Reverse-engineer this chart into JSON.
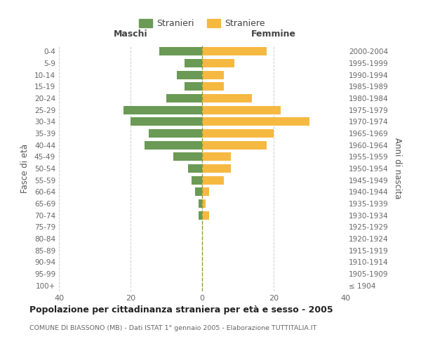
{
  "age_groups": [
    "100+",
    "95-99",
    "90-94",
    "85-89",
    "80-84",
    "75-79",
    "70-74",
    "65-69",
    "60-64",
    "55-59",
    "50-54",
    "45-49",
    "40-44",
    "35-39",
    "30-34",
    "25-29",
    "20-24",
    "15-19",
    "10-14",
    "5-9",
    "0-4"
  ],
  "birth_years": [
    "≤ 1904",
    "1905-1909",
    "1910-1914",
    "1915-1919",
    "1920-1924",
    "1925-1929",
    "1930-1934",
    "1935-1939",
    "1940-1944",
    "1945-1949",
    "1950-1954",
    "1955-1959",
    "1960-1964",
    "1965-1969",
    "1970-1974",
    "1975-1979",
    "1980-1984",
    "1985-1989",
    "1990-1994",
    "1995-1999",
    "2000-2004"
  ],
  "maschi": [
    0,
    0,
    0,
    0,
    0,
    0,
    1,
    1,
    2,
    3,
    4,
    8,
    16,
    15,
    20,
    22,
    10,
    5,
    7,
    5,
    12
  ],
  "femmine": [
    0,
    0,
    0,
    0,
    0,
    0,
    2,
    1,
    2,
    6,
    8,
    8,
    18,
    20,
    30,
    22,
    14,
    6,
    6,
    9,
    18
  ],
  "maschi_color": "#6a9a55",
  "femmine_color": "#f5b942",
  "title": "Popolazione per cittadinanza straniera per età e sesso - 2005",
  "subtitle": "COMUNE DI BIASSONO (MB) - Dati ISTAT 1° gennaio 2005 - Elaborazione TUTTITALIA.IT",
  "xlabel_left": "Maschi",
  "xlabel_right": "Femmine",
  "ylabel_left": "Fasce di età",
  "ylabel_right": "Anni di nascita",
  "legend_maschi": "Stranieri",
  "legend_femmine": "Straniere",
  "xlim": 40,
  "background_color": "#ffffff",
  "grid_color": "#d0d0d0",
  "dashed_line_color": "#999933"
}
